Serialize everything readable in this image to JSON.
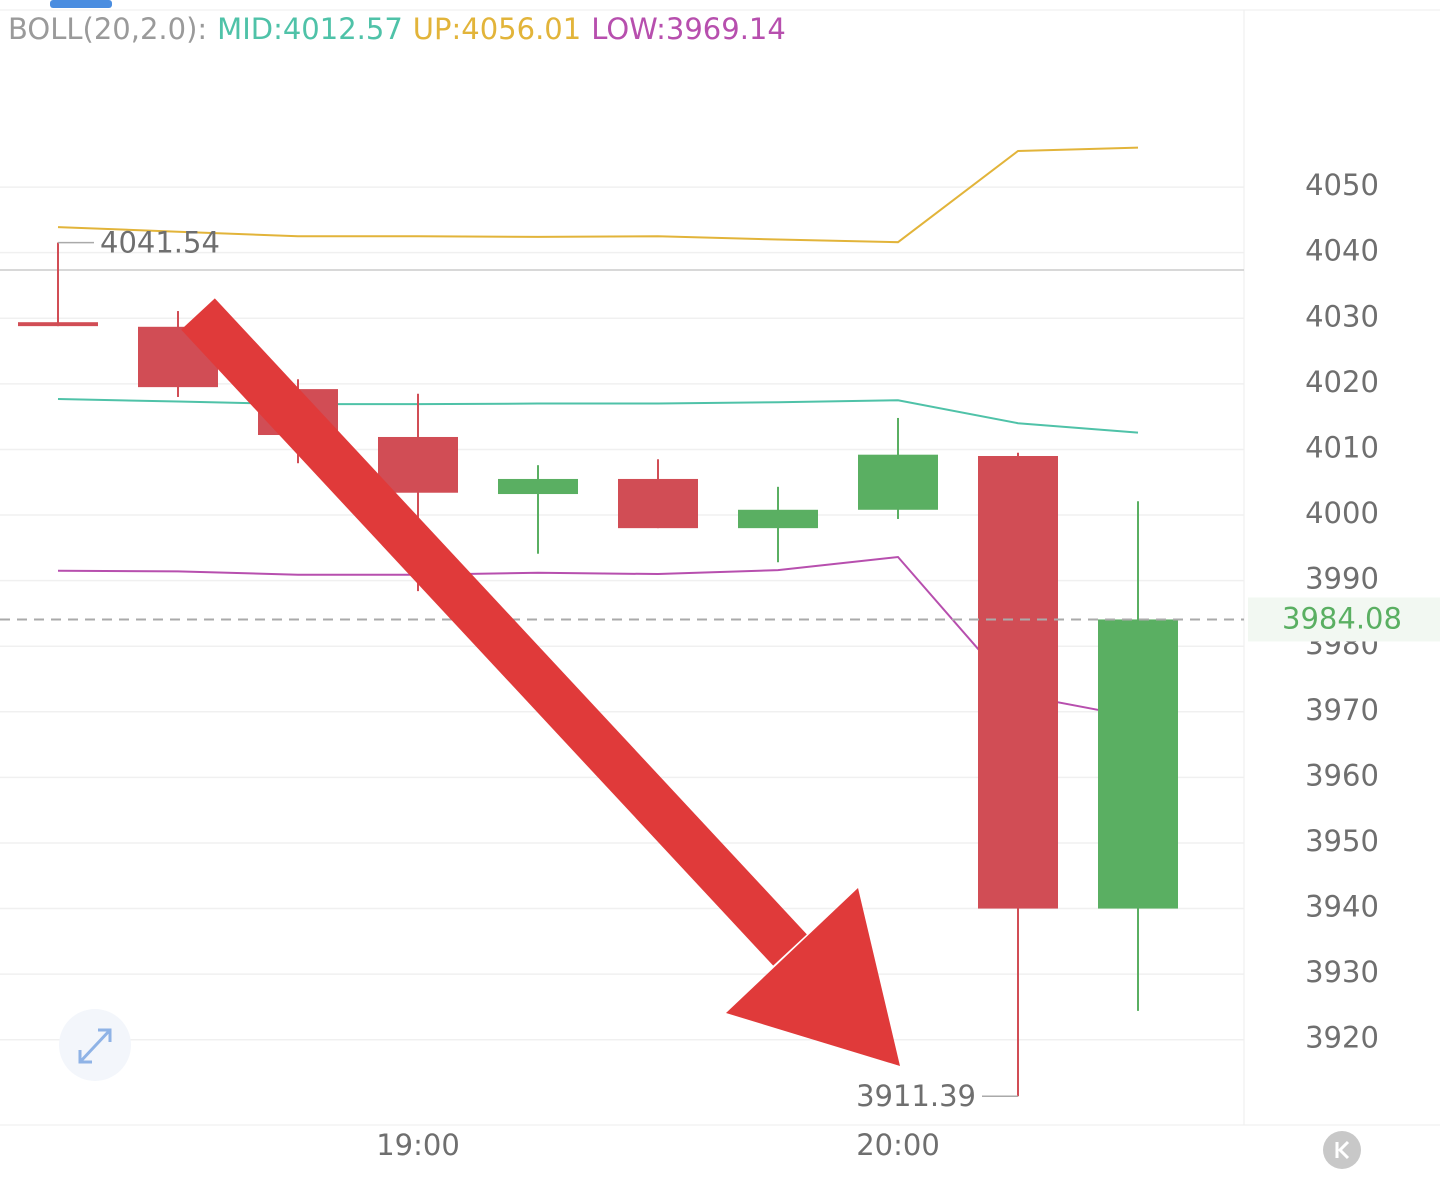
{
  "chart_data": {
    "type": "candlestick",
    "indicator": "BOLL(20,2.0):",
    "legend_labels": [
      {
        "text": "MID:4012.57",
        "color": "#4fc2a8"
      },
      {
        "text": "UP:4056.01",
        "color": "#e2b43a"
      },
      {
        "text": "LOW:3969.14",
        "color": "#b74fae"
      }
    ],
    "categories": [
      null,
      null,
      null,
      "19:00",
      null,
      null,
      null,
      "20:00",
      null,
      null
    ],
    "open": [
      4029.4,
      4028.7,
      4019.2,
      4011.9,
      4003.2,
      4005.5,
      3998.0,
      4000.8,
      4009.0,
      3940.0
    ],
    "high": [
      4041.54,
      4031.1,
      4020.7,
      4018.5,
      4007.6,
      4008.5,
      4004.3,
      4014.8,
      4009.5,
      4002.1
    ],
    "low": [
      4028.8,
      4018.0,
      4007.9,
      3988.4,
      3994.1,
      3998.0,
      3992.8,
      3999.4,
      3911.39,
      3924.4
    ],
    "close": [
      4028.8,
      4019.5,
      4012.2,
      4003.4,
      4005.5,
      3998.0,
      4000.8,
      4009.2,
      3940.0,
      3984.08
    ],
    "up_color": "#5aaf62",
    "down_color": "#d14d55",
    "series": [
      {
        "name": "UP",
        "color": "#e2b43a",
        "values": [
          4043.9,
          4043.2,
          4042.5,
          4042.5,
          4042.4,
          4042.5,
          4042.0,
          4041.6,
          4055.5,
          4056.01
        ]
      },
      {
        "name": "MID",
        "color": "#4fc2a8",
        "values": [
          4017.7,
          4017.3,
          4016.9,
          4016.9,
          4017.0,
          4017.0,
          4017.2,
          4017.5,
          4014.0,
          4012.57
        ]
      },
      {
        "name": "LOW",
        "color": "#b74fae",
        "values": [
          3991.5,
          3991.4,
          3990.9,
          3990.9,
          3991.2,
          3991.0,
          3991.6,
          3993.6,
          3972.6,
          3969.14
        ]
      }
    ],
    "ylim": [
      3907,
      4077
    ],
    "yticks": [
      4050,
      4040,
      4030,
      4020,
      4010,
      4000,
      3990,
      3980,
      3970,
      3960,
      3950,
      3940,
      3930,
      3920
    ],
    "grid": true
  }
}
